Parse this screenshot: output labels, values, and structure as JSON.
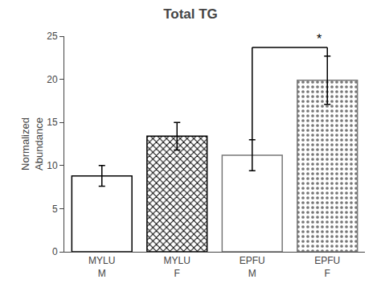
{
  "chart_data": {
    "type": "bar",
    "title": "Total TG",
    "ylabel": "Normalized\nAbundance",
    "categories": [
      "MYLU\nM",
      "MYLU\nF",
      "EPFU\nM",
      "EPFU\nF"
    ],
    "values": [
      8.8,
      13.4,
      11.2,
      19.9
    ],
    "errors": [
      1.2,
      1.6,
      1.8,
      2.8
    ],
    "colors": [
      "#000000",
      "#000000",
      "#777777",
      "#777777"
    ],
    "ylim": [
      0,
      25
    ],
    "yticks": [
      0,
      5,
      10,
      15,
      20,
      25
    ],
    "grid": false,
    "annotations": [
      {
        "text": "*",
        "categories": [
          "EPFU\nM",
          "EPFU\nF"
        ],
        "y": 23.7
      }
    ]
  }
}
